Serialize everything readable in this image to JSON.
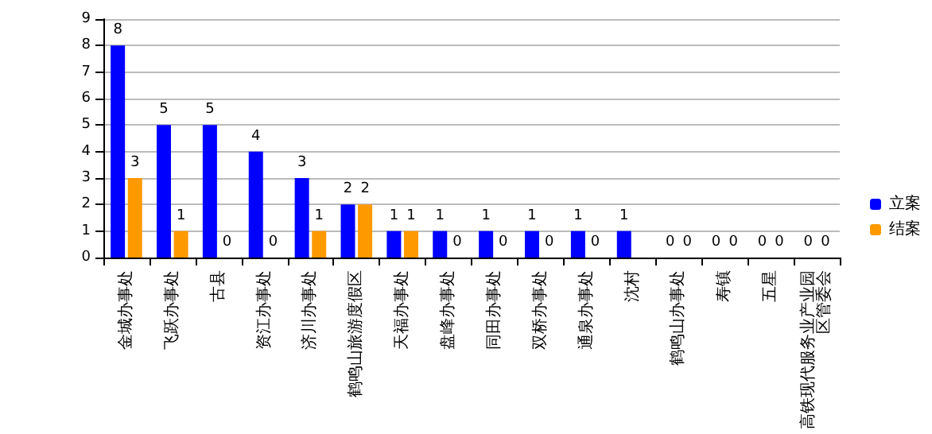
{
  "chart_data": {
    "type": "bar",
    "categories": [
      "金城办事处",
      "飞跃办事处",
      "古县",
      "资江办事处",
      "济川办事处",
      "鹤鸣山旅游度假区",
      "天福办事处",
      "盘峰办事处",
      "同田办事处",
      "双桥办事处",
      "通泉办事处",
      "沈村",
      "鹤鸣山办事处",
      "寿镇",
      "五星",
      "高铁现代服务业产业园区管委会"
    ],
    "series": [
      {
        "name": "立案",
        "color": "#0000ff",
        "values": [
          8,
          5,
          5,
          4,
          3,
          2,
          1,
          1,
          1,
          1,
          1,
          1,
          0,
          0,
          0,
          0
        ],
        "value_labels": [
          "8",
          "5",
          "5",
          "4",
          "3",
          "2",
          "1",
          "1",
          "1",
          "1",
          "1",
          "1",
          "0",
          "0",
          "0",
          "0"
        ]
      },
      {
        "name": "结案",
        "color": "#ff9900",
        "values": [
          3,
          1,
          0,
          0,
          1,
          2,
          1,
          0,
          0,
          0,
          0,
          0,
          0,
          0,
          0,
          0
        ],
        "value_labels": [
          "3",
          "1",
          "0",
          "0",
          "1",
          "2",
          "1",
          "0",
          "0",
          "0",
          "0",
          null,
          "0",
          "0",
          "0",
          "0"
        ]
      }
    ],
    "ylim": [
      0,
      9
    ],
    "yticks": [
      0,
      1,
      2,
      3,
      4,
      5,
      6,
      7,
      8,
      9
    ],
    "grid": "y",
    "legend": "right"
  }
}
